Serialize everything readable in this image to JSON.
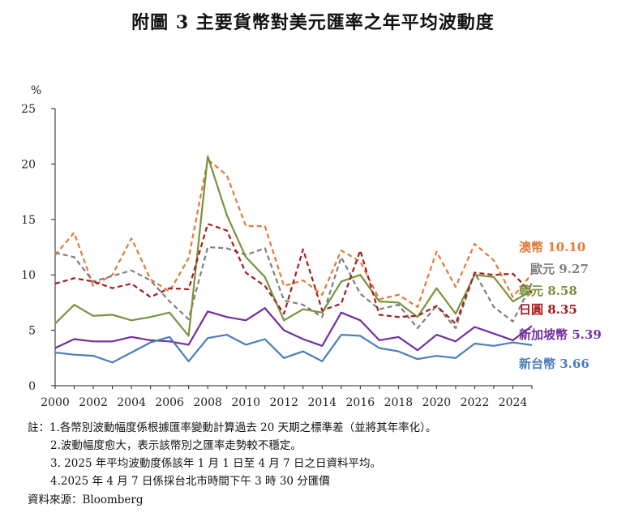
{
  "chart_data": {
    "type": "line",
    "title": "附圖 3  主要貨幣對美元匯率之年平均波動度",
    "ylabel": "%",
    "xlabel": "",
    "ylim": [
      0,
      25
    ],
    "yticks": [
      0,
      5,
      10,
      15,
      20,
      25
    ],
    "xlim": [
      2000,
      2025
    ],
    "xticks": [
      2000,
      2002,
      2004,
      2006,
      2008,
      2010,
      2012,
      2014,
      2016,
      2018,
      2020,
      2022,
      2024
    ],
    "grid": false,
    "x": [
      2000,
      2001,
      2002,
      2003,
      2004,
      2005,
      2006,
      2007,
      2008,
      2009,
      2010,
      2011,
      2012,
      2013,
      2014,
      2015,
      2016,
      2017,
      2018,
      2019,
      2020,
      2021,
      2022,
      2023,
      2024,
      2025
    ],
    "series": [
      {
        "name": "澳幣",
        "end_label": "澳幣 10.10",
        "color": "#E07B39",
        "dash": "dashed",
        "values": [
          11.8,
          13.8,
          9.0,
          10.0,
          13.3,
          9.6,
          8.5,
          11.5,
          20.4,
          19.0,
          14.4,
          14.4,
          9.0,
          9.5,
          8.2,
          12.2,
          11.2,
          7.8,
          8.2,
          7.1,
          12.1,
          8.9,
          12.8,
          11.3,
          8.0,
          10.1
        ]
      },
      {
        "name": "歐元",
        "end_label": "歐元 9.27",
        "color": "#7F7F7F",
        "dash": "dashed",
        "values": [
          12.0,
          11.6,
          9.4,
          9.9,
          10.4,
          9.5,
          7.6,
          6.0,
          12.5,
          12.4,
          11.8,
          12.4,
          7.7,
          7.3,
          6.2,
          11.6,
          8.3,
          6.9,
          7.3,
          5.2,
          7.2,
          5.2,
          10.2,
          7.1,
          5.8,
          9.27
        ]
      },
      {
        "name": "韓元",
        "end_label": "韓元 8.58",
        "color": "#77933C",
        "dash": "solid",
        "values": [
          5.6,
          7.3,
          6.3,
          6.4,
          5.9,
          6.2,
          6.6,
          4.5,
          20.7,
          15.4,
          11.6,
          9.8,
          5.9,
          6.9,
          6.6,
          9.4,
          10.0,
          7.6,
          7.5,
          6.2,
          8.8,
          6.5,
          10.0,
          9.8,
          7.6,
          8.58
        ]
      },
      {
        "name": "日圓",
        "end_label": "日圓 8.35",
        "color": "#A61C1C",
        "dash": "dashed",
        "values": [
          9.2,
          9.7,
          9.4,
          8.8,
          9.2,
          8.0,
          8.8,
          8.7,
          14.6,
          14.0,
          10.2,
          9.0,
          6.5,
          12.3,
          6.8,
          7.4,
          12.2,
          6.4,
          6.2,
          6.3,
          7.2,
          5.6,
          10.2,
          10.0,
          10.1,
          8.35
        ]
      },
      {
        "name": "新加坡幣",
        "end_label": "新加坡幣 5.39",
        "color": "#7030A0",
        "dash": "solid",
        "values": [
          3.4,
          4.2,
          4.0,
          4.0,
          4.4,
          4.1,
          4.0,
          3.7,
          6.7,
          6.2,
          5.9,
          7.0,
          5.0,
          4.2,
          3.6,
          6.6,
          5.9,
          4.1,
          4.4,
          3.2,
          4.6,
          4.0,
          5.3,
          4.7,
          4.1,
          5.39
        ]
      },
      {
        "name": "新台幣",
        "end_label": "新台幣 3.66",
        "color": "#4A7EBB",
        "dash": "solid",
        "values": [
          3.0,
          2.8,
          2.7,
          2.1,
          3.0,
          3.9,
          4.4,
          2.2,
          4.3,
          4.6,
          3.7,
          4.2,
          2.5,
          3.1,
          2.2,
          4.6,
          4.5,
          3.4,
          3.1,
          2.4,
          2.7,
          2.5,
          3.8,
          3.6,
          3.9,
          3.66
        ]
      }
    ]
  },
  "notes": {
    "line1": "註：1.各幣別波動幅度係根據匯率變動計算過去 20 天期之標準差（並將其年率化）。",
    "line2": "2.波動幅度愈大，表示該幣別之匯率走勢較不穩定。",
    "line3": "3. 2025 年平均波動度係該年 1 月 1 日至 4 月 7 日之日資料平均。",
    "line4": "4.2025 年 4 月 7 日係採台北市時間下午 3 時 30 分匯價"
  },
  "source": "資料來源：Bloomberg"
}
